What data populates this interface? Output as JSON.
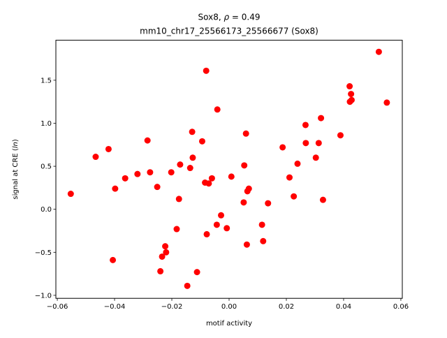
{
  "chart_data": {
    "type": "scatter",
    "title_line1_prefix": "Sox8, ",
    "title_line1_rho": "ρ",
    "title_line1_suffix": " = 0.49",
    "title_line2": "mm10_chr17_25566173_25566677 (Sox8)",
    "xlabel": "motif activity",
    "ylabel_prefix": "signal at CRE (",
    "ylabel_italic": "ln",
    "ylabel_suffix": ")",
    "xlim": [
      -0.0605,
      0.0605
    ],
    "ylim": [
      -1.035,
      1.965
    ],
    "xticks": [
      -0.06,
      -0.04,
      -0.02,
      0.0,
      0.02,
      0.04,
      0.06
    ],
    "xtick_labels": [
      "−0.06",
      "−0.04",
      "−0.02",
      "0.00",
      "0.02",
      "0.04",
      "0.06"
    ],
    "yticks": [
      -1.0,
      -0.5,
      0.0,
      0.5,
      1.0,
      1.5
    ],
    "ytick_labels": [
      "−1.0",
      "−0.5",
      "0.0",
      "0.5",
      "1.0",
      "1.5"
    ],
    "grid": false,
    "marker_color": "#ff0000",
    "points": [
      {
        "x": -0.0553,
        "y": 0.18
      },
      {
        "x": -0.0466,
        "y": 0.61
      },
      {
        "x": -0.0421,
        "y": 0.7
      },
      {
        "x": -0.0406,
        "y": -0.59
      },
      {
        "x": -0.0398,
        "y": 0.24
      },
      {
        "x": -0.0363,
        "y": 0.36
      },
      {
        "x": -0.032,
        "y": 0.41
      },
      {
        "x": -0.0285,
        "y": 0.8
      },
      {
        "x": -0.0276,
        "y": 0.43
      },
      {
        "x": -0.0251,
        "y": 0.26
      },
      {
        "x": -0.024,
        "y": -0.72
      },
      {
        "x": -0.0234,
        "y": -0.55
      },
      {
        "x": -0.0223,
        "y": -0.43
      },
      {
        "x": -0.022,
        "y": -0.5
      },
      {
        "x": -0.0202,
        "y": 0.43
      },
      {
        "x": -0.0183,
        "y": -0.23
      },
      {
        "x": -0.0175,
        "y": 0.12
      },
      {
        "x": -0.0171,
        "y": 0.52
      },
      {
        "x": -0.0146,
        "y": -0.89
      },
      {
        "x": -0.0136,
        "y": 0.48
      },
      {
        "x": -0.0129,
        "y": 0.9
      },
      {
        "x": -0.0127,
        "y": 0.6
      },
      {
        "x": -0.0112,
        "y": -0.73
      },
      {
        "x": -0.0094,
        "y": 0.79
      },
      {
        "x": -0.0084,
        "y": 0.31
      },
      {
        "x": -0.008,
        "y": 1.61
      },
      {
        "x": -0.0078,
        "y": -0.29
      },
      {
        "x": -0.0071,
        "y": 0.3
      },
      {
        "x": -0.006,
        "y": 0.36
      },
      {
        "x": -0.0043,
        "y": -0.18
      },
      {
        "x": -0.0041,
        "y": 1.16
      },
      {
        "x": -0.0028,
        "y": -0.07
      },
      {
        "x": -0.0008,
        "y": -0.22
      },
      {
        "x": 0.0008,
        "y": 0.38
      },
      {
        "x": 0.0051,
        "y": 0.08
      },
      {
        "x": 0.0053,
        "y": 0.51
      },
      {
        "x": 0.0059,
        "y": 0.88
      },
      {
        "x": 0.0062,
        "y": -0.41
      },
      {
        "x": 0.0064,
        "y": 0.21
      },
      {
        "x": 0.0069,
        "y": 0.24
      },
      {
        "x": 0.0115,
        "y": -0.18
      },
      {
        "x": 0.0119,
        "y": -0.37
      },
      {
        "x": 0.0136,
        "y": 0.07
      },
      {
        "x": 0.0187,
        "y": 0.72
      },
      {
        "x": 0.0211,
        "y": 0.37
      },
      {
        "x": 0.0226,
        "y": 0.15
      },
      {
        "x": 0.0239,
        "y": 0.53
      },
      {
        "x": 0.0267,
        "y": 0.98
      },
      {
        "x": 0.0268,
        "y": 0.77
      },
      {
        "x": 0.0303,
        "y": 0.6
      },
      {
        "x": 0.0313,
        "y": 0.77
      },
      {
        "x": 0.0321,
        "y": 1.06
      },
      {
        "x": 0.0328,
        "y": 0.11
      },
      {
        "x": 0.0389,
        "y": 0.86
      },
      {
        "x": 0.0421,
        "y": 1.43
      },
      {
        "x": 0.0422,
        "y": 1.25
      },
      {
        "x": 0.0426,
        "y": 1.34
      },
      {
        "x": 0.0428,
        "y": 1.27
      },
      {
        "x": 0.0523,
        "y": 1.83
      },
      {
        "x": 0.0551,
        "y": 1.24
      }
    ]
  }
}
